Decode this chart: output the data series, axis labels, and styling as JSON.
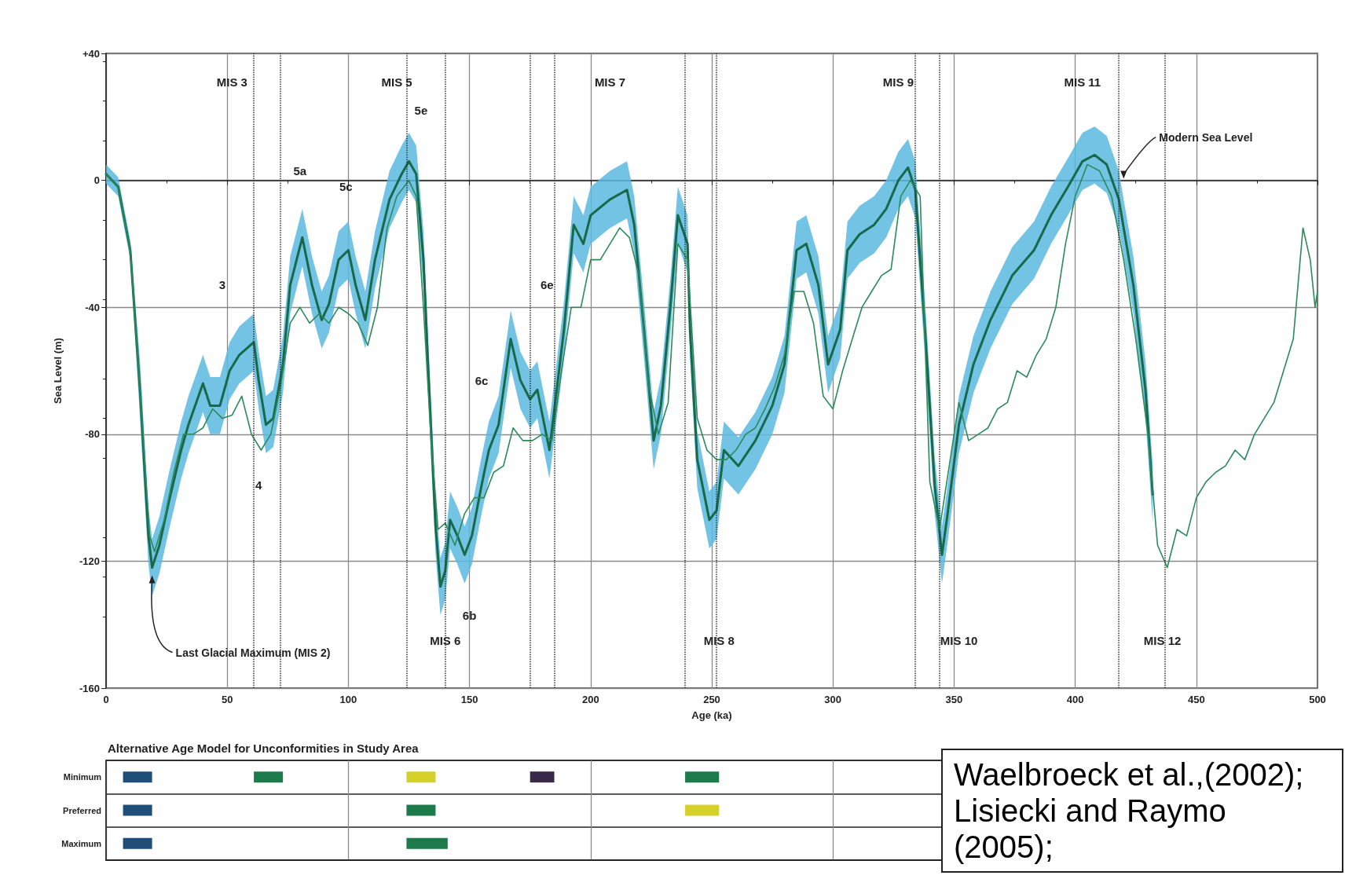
{
  "chart_data": [
    {
      "type": "line",
      "xlabel": "Age (ka)",
      "ylabel": "Sea Level (m)",
      "xlim": [
        0,
        500
      ],
      "xticks": [
        0,
        50,
        100,
        150,
        200,
        250,
        300,
        350,
        400,
        450,
        500
      ],
      "ylim": [
        -160,
        40
      ],
      "yticks": [
        {
          "value": 40,
          "label": "+40"
        },
        0,
        -40,
        -80,
        -120,
        -160
      ],
      "grid": true,
      "marker": "none",
      "line_style": "solid",
      "series": [
        {
          "color": "#17694a",
          "x": [
            0,
            5,
            10,
            14,
            17.5,
            19,
            22,
            26,
            31,
            34,
            40,
            43,
            47,
            51,
            55,
            61,
            63,
            66,
            69,
            73,
            76,
            81,
            85,
            89,
            92,
            96,
            100,
            103,
            107,
            111,
            117,
            122,
            125,
            128,
            131,
            133,
            136,
            138,
            140,
            142,
            145,
            148,
            151,
            155,
            158,
            162,
            167,
            171,
            175,
            178,
            183,
            189,
            193,
            197,
            200,
            208,
            215,
            218,
            222,
            226,
            229,
            233,
            236,
            240,
            241,
            244,
            249,
            252,
            255,
            261,
            268,
            275,
            280,
            285,
            289,
            294,
            298,
            303,
            306,
            311,
            317,
            322,
            327,
            331,
            334,
            338,
            342,
            345,
            347,
            352,
            358,
            365,
            374,
            383,
            390,
            397,
            403,
            408,
            413,
            418,
            424,
            429,
            432
          ],
          "values": [
            2,
            -2,
            -22,
            -66,
            -112,
            -122,
            -115,
            -101,
            -85,
            -77,
            -64,
            -71,
            -71,
            -60,
            -55,
            -51,
            -63,
            -77,
            -75,
            -58,
            -33,
            -18,
            -33,
            -44,
            -39,
            -25,
            -22,
            -33,
            -44,
            -25,
            -6,
            2,
            6,
            2,
            -25,
            -60,
            -109,
            -128,
            -123,
            -107,
            -112,
            -118,
            -112,
            -96,
            -85,
            -77,
            -50,
            -63,
            -69,
            -66,
            -85,
            -47,
            -14,
            -20,
            -11,
            -6,
            -3,
            -14,
            -47,
            -82,
            -71,
            -39,
            -11,
            -20,
            -47,
            -88,
            -107,
            -104,
            -85,
            -90,
            -82,
            -71,
            -58,
            -22,
            -20,
            -33,
            -58,
            -47,
            -22,
            -17,
            -14,
            -9,
            0,
            4,
            -3,
            -47,
            -96,
            -118,
            -107,
            -77,
            -58,
            -44,
            -30,
            -22,
            -11,
            -2,
            6,
            8,
            5,
            -6,
            -33,
            -66,
            -99
          ],
          "upper": [
            5,
            1,
            -19,
            -57,
            -103,
            -113,
            -106,
            -92,
            -76,
            -68,
            -55,
            -62,
            -62,
            -51,
            -46,
            -42,
            -54,
            -68,
            -66,
            -49,
            -24,
            -9,
            -24,
            -35,
            -30,
            -16,
            -13,
            -24,
            -35,
            -16,
            3,
            11,
            15,
            11,
            -16,
            -51,
            -100,
            -119,
            -114,
            -98,
            -103,
            -109,
            -103,
            -87,
            -76,
            -68,
            -41,
            -54,
            -60,
            -57,
            -76,
            -38,
            -5,
            -11,
            -2,
            3,
            6,
            -5,
            -38,
            -73,
            -62,
            -30,
            -2,
            -11,
            -38,
            -79,
            -98,
            -95,
            -76,
            -81,
            -73,
            -62,
            -49,
            -13,
            -11,
            -24,
            -49,
            -38,
            -13,
            -8,
            -5,
            0,
            9,
            13,
            6,
            -38,
            -87,
            -109,
            -98,
            -68,
            -49,
            -35,
            -21,
            -13,
            -2,
            7,
            15,
            17,
            14,
            3,
            -24,
            -57,
            -90
          ],
          "lower": [
            -1,
            -5,
            -25,
            -75,
            -121,
            -131,
            -124,
            -110,
            -94,
            -86,
            -73,
            -80,
            -80,
            -69,
            -64,
            -60,
            -72,
            -86,
            -84,
            -67,
            -42,
            -27,
            -42,
            -53,
            -48,
            -34,
            -31,
            -42,
            -53,
            -34,
            -15,
            -7,
            -3,
            -7,
            -34,
            -69,
            -118,
            -137,
            -132,
            -116,
            -121,
            -127,
            -121,
            -105,
            -94,
            -86,
            -59,
            -72,
            -78,
            -75,
            -94,
            -56,
            -23,
            -29,
            -20,
            -15,
            -12,
            -23,
            -56,
            -91,
            -80,
            -48,
            -20,
            -29,
            -56,
            -97,
            -116,
            -113,
            -94,
            -99,
            -91,
            -80,
            -67,
            -31,
            -29,
            -42,
            -67,
            -56,
            -31,
            -26,
            -23,
            -18,
            -9,
            -5,
            -12,
            -56,
            -105,
            -127,
            -116,
            -86,
            -67,
            -53,
            -39,
            -31,
            -20,
            -11,
            -3,
            -1,
            -4,
            -15,
            -42,
            -75,
            -108
          ]
        },
        {
          "color": "#2b8a5a",
          "x": [
            0,
            5,
            10,
            14,
            18,
            20,
            24,
            28,
            32,
            36,
            40,
            44,
            48,
            52,
            56,
            60,
            64,
            68,
            72,
            76,
            80,
            84,
            88,
            92,
            96,
            100,
            104,
            108,
            112,
            116,
            120,
            125,
            128,
            131,
            134,
            137,
            140,
            144,
            148,
            152,
            156,
            160,
            164,
            168,
            172,
            176,
            180,
            184,
            188,
            192,
            196,
            200,
            204,
            208,
            212,
            216,
            220,
            224,
            228,
            232,
            236,
            240,
            244,
            248,
            252,
            256,
            260,
            264,
            268,
            272,
            276,
            280,
            284,
            288,
            292,
            296,
            300,
            304,
            308,
            312,
            316,
            320,
            324,
            328,
            332,
            336,
            340,
            344,
            348,
            352,
            356,
            360,
            364,
            368,
            372,
            376,
            380,
            384,
            388,
            392,
            396,
            400,
            405,
            410,
            415,
            420,
            425,
            430,
            434,
            438,
            442,
            446,
            450,
            454,
            458,
            462,
            466,
            470,
            474,
            478,
            482,
            486,
            490,
            494,
            497,
            499,
            500
          ],
          "values": [
            2,
            -2,
            -22,
            -66,
            -112,
            -117,
            -107,
            -92,
            -80,
            -80,
            -78,
            -72,
            -75,
            -74,
            -68,
            -80,
            -85,
            -80,
            -65,
            -45,
            -40,
            -45,
            -42,
            -45,
            -40,
            -42,
            -45,
            -52,
            -40,
            -15,
            -5,
            0,
            -5,
            -40,
            -80,
            -110,
            -108,
            -115,
            -105,
            -100,
            -100,
            -92,
            -90,
            -78,
            -82,
            -82,
            -80,
            -82,
            -60,
            -40,
            -40,
            -25,
            -25,
            -20,
            -15,
            -18,
            -30,
            -65,
            -80,
            -70,
            -20,
            -25,
            -75,
            -85,
            -88,
            -88,
            -85,
            -80,
            -78,
            -72,
            -65,
            -55,
            -35,
            -35,
            -45,
            -68,
            -72,
            -60,
            -50,
            -40,
            -35,
            -30,
            -28,
            -5,
            0,
            -5,
            -95,
            -110,
            -90,
            -70,
            -82,
            -80,
            -78,
            -72,
            -70,
            -60,
            -62,
            -55,
            -50,
            -40,
            -20,
            -5,
            5,
            3,
            -5,
            -25,
            -50,
            -80,
            -115,
            -122,
            -110,
            -112,
            -100,
            -95,
            -92,
            -90,
            -85,
            -88,
            -80,
            -75,
            -70,
            -60,
            -50,
            -15,
            -25,
            -40,
            -35
          ]
        }
      ],
      "ref_lines": [
        {
          "axis": "x",
          "value": 61,
          "line_style": "dotted",
          "color": "#333333"
        },
        {
          "axis": "x",
          "value": 72,
          "line_style": "dotted",
          "color": "#333333"
        },
        {
          "axis": "x",
          "value": 124,
          "line_style": "dotted",
          "color": "#333333"
        },
        {
          "axis": "x",
          "value": 140,
          "line_style": "dotted",
          "color": "#333333"
        },
        {
          "axis": "x",
          "value": 175,
          "line_style": "dotted",
          "color": "#333333"
        },
        {
          "axis": "x",
          "value": 185,
          "line_style": "dotted",
          "color": "#333333"
        },
        {
          "axis": "x",
          "value": 239,
          "line_style": "dotted",
          "color": "#333333"
        },
        {
          "axis": "x",
          "value": 252,
          "line_style": "dotted",
          "color": "#333333"
        },
        {
          "axis": "x",
          "value": 334,
          "line_style": "dotted",
          "color": "#333333"
        },
        {
          "axis": "x",
          "value": 344,
          "line_style": "dotted",
          "color": "#333333"
        },
        {
          "axis": "x",
          "value": 418,
          "line_style": "dotted",
          "color": "#333333"
        },
        {
          "axis": "x",
          "value": 437,
          "line_style": "dotted",
          "color": "#333333"
        }
      ],
      "annotations": [
        "MIS 3",
        "MIS 5",
        "MIS 7",
        "MIS 9",
        "MIS 11",
        {
          "text": "MIS 6",
          "x": 140,
          "y": -145
        },
        {
          "text": "MIS 8",
          "x": 253,
          "y": -145
        },
        "MIS 10",
        {
          "text": "MIS 12",
          "x": 436,
          "y": -145
        },
        "5e",
        "5a",
        "5c",
        "3",
        "4",
        "6e",
        "6c",
        "6b",
        {
          "text": "Last Glacial Maximum (MIS 2)",
          "x": 19,
          "y": -124
        },
        {
          "text": "Modern Sea Level",
          "x": 420,
          "y": 0
        },
        "Waelbroeck et al.,(2002); Lisiecki and Raymo (2005);"
      ]
    },
    {
      "type": "bar",
      "orientation": "horizontal",
      "title": "Alternative Age Model for Unconformities in Study Area",
      "categories": [
        "Minimum",
        "Preferred",
        "Maximum"
      ],
      "xlim": [
        0,
        500
      ],
      "xticks": [
        0,
        50,
        100,
        150,
        200,
        250,
        300,
        350,
        400,
        450,
        500
      ],
      "tick_labels": "y",
      "grid": "x",
      "series": [
        {
          "colors": [
            "#1f4e79",
            "#1f4e79",
            "#1f4e79"
          ],
          "base": [
            7,
            7,
            7
          ],
          "values": [
            12,
            12,
            12
          ]
        },
        {
          "colors": [
            "#1d7a4a",
            null,
            null
          ],
          "base": [
            61,
            null,
            null
          ],
          "values": [
            12,
            null,
            null
          ]
        },
        {
          "colors": [
            "#d6d12a",
            "#1d7a4a",
            "#1d7a4a"
          ],
          "base": [
            124,
            124,
            124
          ],
          "values": [
            12,
            12,
            17
          ]
        },
        {
          "colors": [
            "#3a2a4a",
            null,
            null
          ],
          "base": [
            175,
            null,
            null
          ],
          "values": [
            10,
            null,
            null
          ]
        },
        {
          "colors": [
            "#1d7a4a",
            "#d6d12a",
            null
          ],
          "base": [
            239,
            239,
            null
          ],
          "values": [
            14,
            14,
            null
          ]
        }
      ]
    }
  ]
}
